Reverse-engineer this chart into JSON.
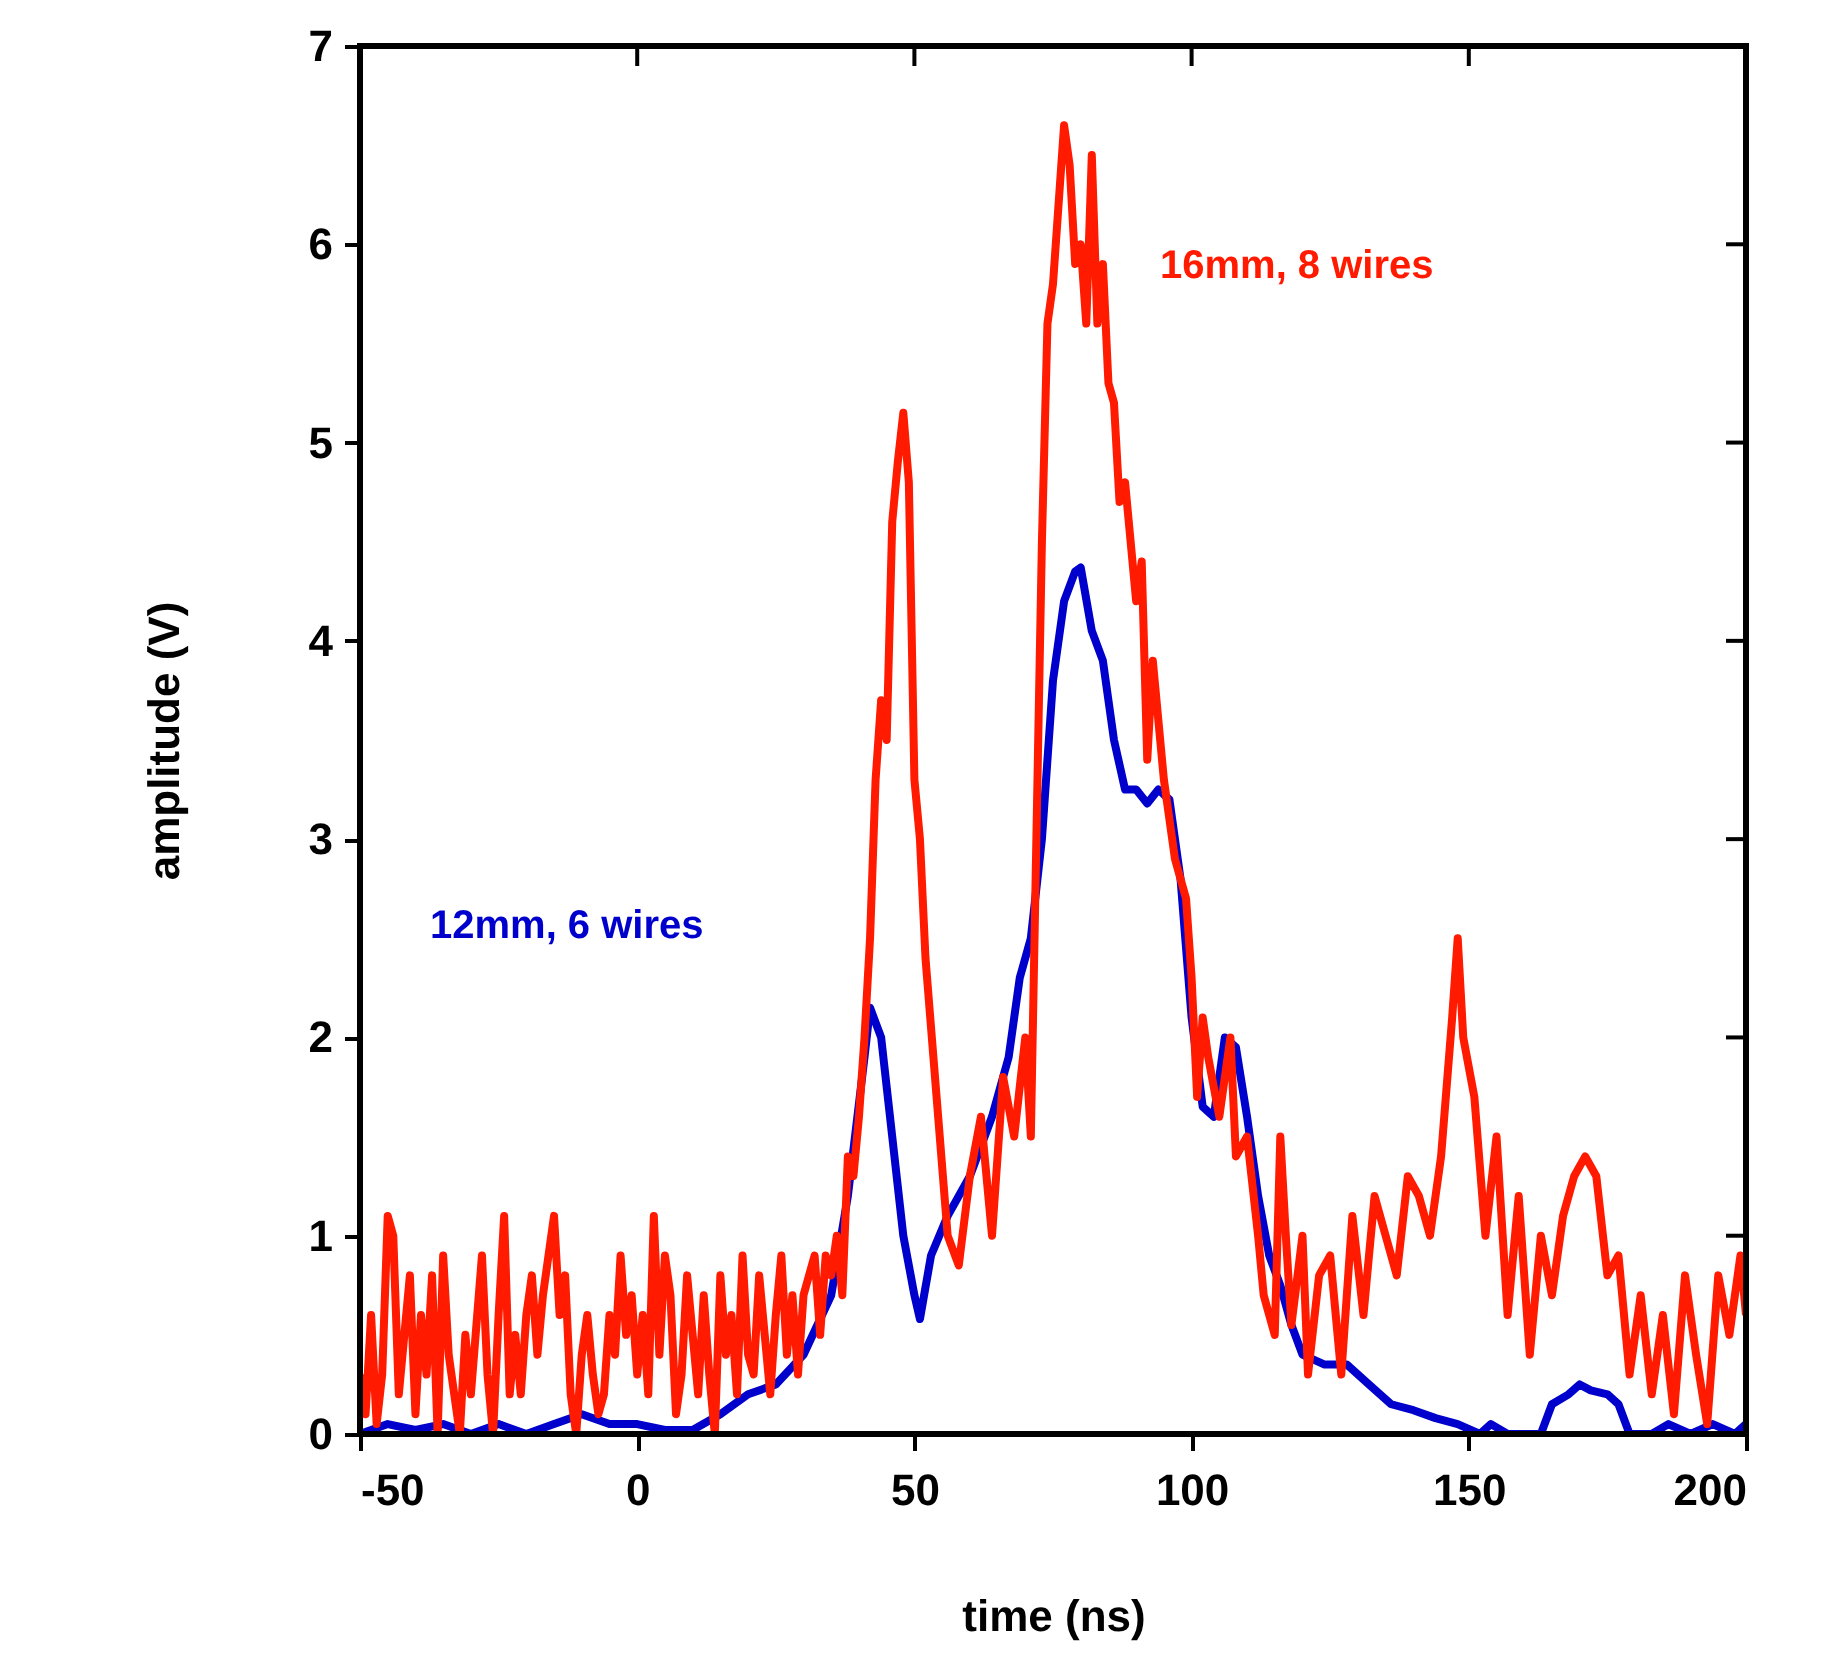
{
  "chart_data": {
    "type": "line",
    "xlabel": "time (ns)",
    "ylabel": "amplitude (V)",
    "xlim": [
      -50,
      200
    ],
    "ylim": [
      0,
      7
    ],
    "xticks": [
      -50,
      0,
      50,
      100,
      150,
      200
    ],
    "yticks": [
      0,
      1,
      2,
      3,
      4,
      5,
      6,
      7
    ],
    "grid": false,
    "marker": "none",
    "line_style": "solid",
    "series": [
      {
        "name": "12mm, 6 wires",
        "color": "#0000cc",
        "x": [
          -50,
          -45,
          -40,
          -35,
          -30,
          -25,
          -20,
          -15,
          -10,
          -5,
          0,
          5,
          10,
          15,
          20,
          25,
          30,
          35,
          38,
          41,
          42,
          44,
          46,
          48,
          50,
          51,
          53,
          56,
          60,
          64,
          67,
          69,
          71,
          73,
          75,
          77,
          79,
          80,
          82,
          84,
          86,
          88,
          90,
          92,
          94,
          96,
          98,
          100,
          102,
          104,
          106,
          108,
          110,
          112,
          114,
          116,
          118,
          120,
          124,
          128,
          132,
          136,
          140,
          144,
          148,
          152,
          154,
          157,
          160,
          163,
          165,
          168,
          170,
          172,
          175,
          177,
          179,
          183,
          186,
          190,
          194,
          198,
          200
        ],
        "values": [
          0,
          0.05,
          0.02,
          0.05,
          0,
          0.05,
          0,
          0.05,
          0.1,
          0.05,
          0.05,
          0.02,
          0.02,
          0.1,
          0.2,
          0.25,
          0.4,
          0.7,
          1.2,
          1.9,
          2.15,
          2.0,
          1.5,
          1.0,
          0.7,
          0.58,
          0.9,
          1.1,
          1.3,
          1.6,
          1.9,
          2.3,
          2.5,
          3.0,
          3.8,
          4.2,
          4.35,
          4.37,
          4.05,
          3.9,
          3.5,
          3.25,
          3.25,
          3.18,
          3.25,
          3.2,
          2.8,
          2.1,
          1.65,
          1.6,
          2.0,
          1.95,
          1.6,
          1.2,
          0.9,
          0.75,
          0.55,
          0.4,
          0.35,
          0.35,
          0.25,
          0.15,
          0.12,
          0.08,
          0.05,
          0,
          0.05,
          0,
          0,
          0,
          0.15,
          0.2,
          0.25,
          0.22,
          0.2,
          0.15,
          0,
          0,
          0.05,
          0,
          0.05,
          0,
          0.05
        ]
      },
      {
        "name": "16mm, 8 wires",
        "color": "#ff1a00",
        "x": [
          -50,
          -49,
          -48,
          -47,
          -46,
          -45,
          -44,
          -43,
          -42,
          -41,
          -40,
          -39,
          -38,
          -37,
          -36,
          -35,
          -34,
          -33,
          -32,
          -31,
          -30,
          -28,
          -27,
          -26,
          -25,
          -24,
          -23,
          -22,
          -21,
          -20,
          -19,
          -18,
          -17,
          -16,
          -15,
          -14,
          -13,
          -12,
          -11,
          -10,
          -9,
          -8,
          -7,
          -6,
          -5,
          -4,
          -3,
          -2,
          -1,
          0,
          1,
          2,
          3,
          4,
          5,
          6,
          7,
          8,
          9,
          10,
          11,
          12,
          13,
          14,
          15,
          16,
          17,
          18,
          19,
          20,
          21,
          22,
          23,
          24,
          25,
          26,
          27,
          28,
          29,
          30,
          32,
          33,
          34,
          35,
          36,
          37,
          38,
          39,
          40,
          41,
          42,
          43,
          44,
          45,
          46,
          47,
          48,
          49,
          50,
          51,
          52,
          54,
          56,
          58,
          60,
          62,
          64,
          66,
          68,
          70,
          71,
          72,
          73,
          74,
          75,
          76,
          77,
          78,
          79,
          80,
          81,
          82,
          83,
          84,
          85,
          86,
          87,
          88,
          89,
          90,
          91,
          92,
          93,
          95,
          97,
          99,
          100,
          101,
          102,
          103,
          105,
          107,
          108,
          110,
          112,
          113,
          115,
          116,
          117,
          118,
          120,
          121,
          123,
          125,
          127,
          129,
          131,
          133,
          135,
          137,
          139,
          141,
          143,
          145,
          147,
          148,
          149,
          151,
          153,
          155,
          157,
          159,
          161,
          163,
          165,
          167,
          169,
          171,
          173,
          175,
          177,
          179,
          181,
          183,
          185,
          187,
          189,
          191,
          193,
          195,
          197,
          199,
          200
        ],
        "values": [
          0.3,
          0.1,
          0.6,
          0.05,
          0.3,
          1.1,
          1.0,
          0.2,
          0.5,
          0.8,
          0.1,
          0.6,
          0.3,
          0.8,
          0,
          0.9,
          0.4,
          0.2,
          0,
          0.5,
          0.2,
          0.9,
          0.3,
          0,
          0.6,
          1.1,
          0.2,
          0.5,
          0.2,
          0.6,
          0.8,
          0.4,
          0.7,
          0.9,
          1.1,
          0.6,
          0.8,
          0.2,
          0,
          0.4,
          0.6,
          0.3,
          0.1,
          0.2,
          0.6,
          0.4,
          0.9,
          0.5,
          0.7,
          0.3,
          0.6,
          0.2,
          1.1,
          0.4,
          0.9,
          0.7,
          0.1,
          0.3,
          0.8,
          0.5,
          0.2,
          0.7,
          0.3,
          0,
          0.8,
          0.4,
          0.6,
          0.2,
          0.9,
          0.4,
          0.3,
          0.8,
          0.5,
          0.2,
          0.6,
          0.9,
          0.4,
          0.7,
          0.3,
          0.7,
          0.9,
          0.5,
          0.9,
          0.8,
          1.0,
          0.7,
          1.4,
          1.3,
          1.6,
          2.0,
          2.5,
          3.3,
          3.7,
          3.5,
          4.6,
          4.9,
          5.15,
          4.8,
          3.3,
          3.0,
          2.4,
          1.7,
          1.0,
          0.85,
          1.3,
          1.6,
          1.0,
          1.8,
          1.5,
          2.0,
          1.5,
          3.0,
          4.5,
          5.6,
          5.8,
          6.2,
          6.6,
          6.4,
          5.9,
          6.0,
          5.6,
          6.45,
          5.6,
          5.9,
          5.3,
          5.2,
          4.7,
          4.8,
          4.5,
          4.2,
          4.4,
          3.4,
          3.9,
          3.3,
          2.9,
          2.7,
          2.3,
          1.7,
          2.1,
          1.9,
          1.6,
          2.0,
          1.4,
          1.5,
          1.0,
          0.7,
          0.5,
          1.5,
          1.0,
          0.55,
          1.0,
          0.3,
          0.8,
          0.9,
          0.3,
          1.1,
          0.6,
          1.2,
          1.0,
          0.8,
          1.3,
          1.2,
          1.0,
          1.4,
          2.1,
          2.5,
          2.0,
          1.7,
          1.0,
          1.5,
          0.6,
          1.2,
          0.4,
          1.0,
          0.7,
          1.1,
          1.3,
          1.4,
          1.3,
          0.8,
          0.9,
          0.3,
          0.7,
          0.2,
          0.6,
          0.1,
          0.8,
          0.4,
          0.05,
          0.8,
          0.5,
          0.9,
          0.6
        ]
      }
    ]
  }
}
